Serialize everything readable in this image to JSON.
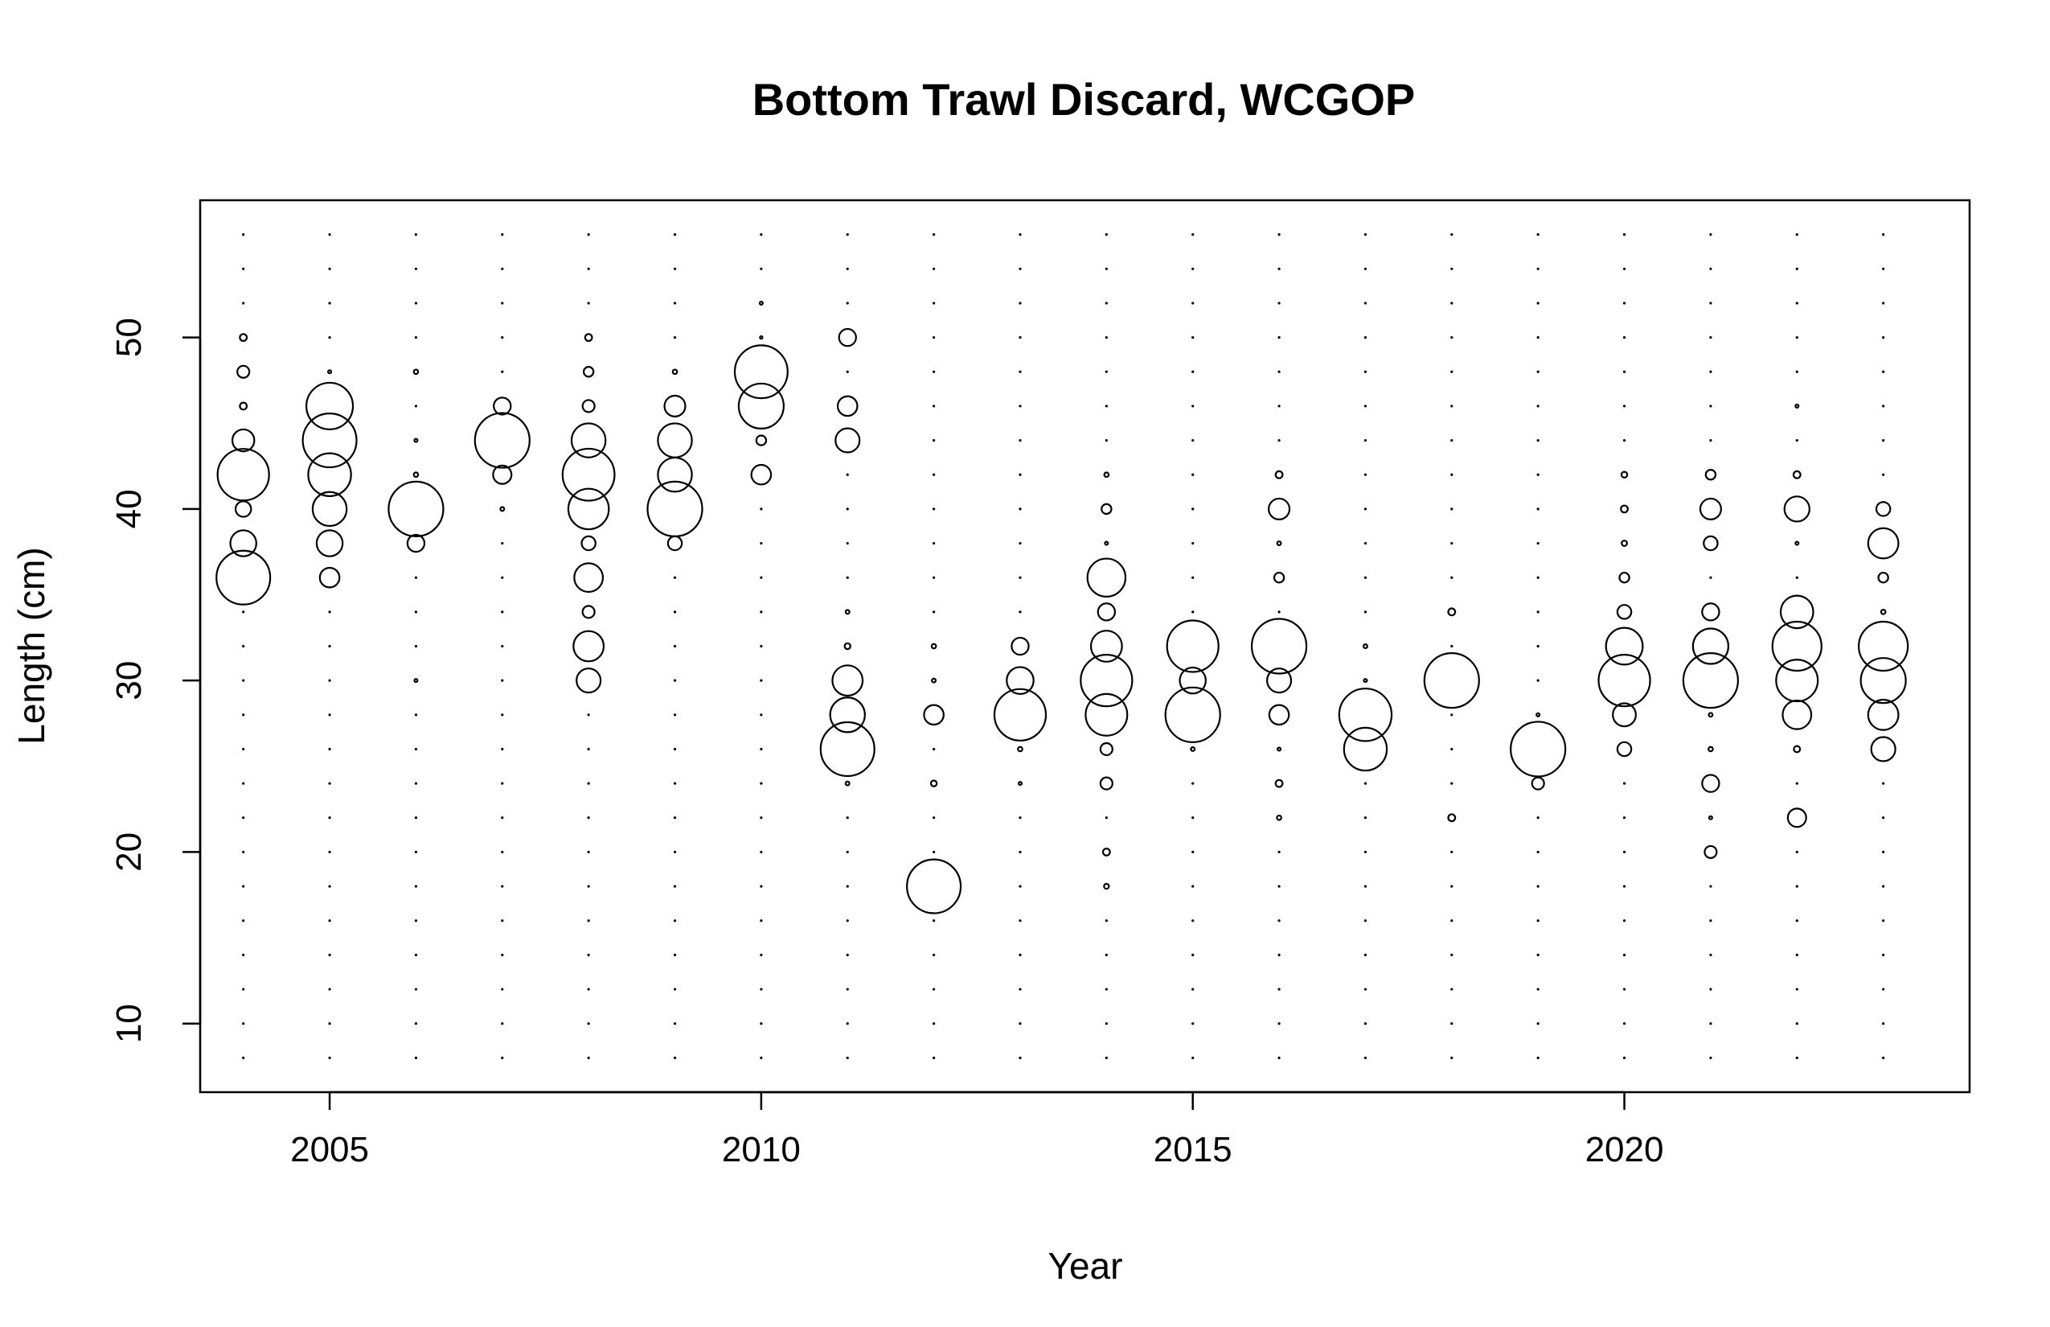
{
  "chart_data": {
    "type": "scatter",
    "subtype": "bubble",
    "title": "Bottom Trawl Discard, WCGOP",
    "xlabel": "Year",
    "ylabel": "Length (cm)",
    "xlim": [
      2003.5,
      2024.0
    ],
    "ylim": [
      6.0,
      58.0
    ],
    "x_ticks": [
      2005,
      2010,
      2015,
      2020
    ],
    "y_ticks": [
      10,
      20,
      30,
      40,
      50
    ],
    "x_tick_labels": [
      "2005",
      "2010",
      "2015",
      "2020"
    ],
    "y_tick_labels": [
      "10",
      "20",
      "30",
      "40",
      "50"
    ],
    "grid": false,
    "years": [
      2004,
      2005,
      2006,
      2007,
      2008,
      2009,
      2010,
      2011,
      2012,
      2013,
      2014,
      2015,
      2016,
      2017,
      2018,
      2019,
      2020,
      2021,
      2022,
      2023
    ],
    "length_bins": [
      8,
      10,
      12,
      14,
      16,
      18,
      20,
      22,
      24,
      26,
      28,
      30,
      32,
      34,
      36,
      38,
      40,
      42,
      44,
      46,
      48,
      50,
      52,
      54,
      56
    ],
    "size_meaning": "bubble radius proportional to the square root of the proportion at length within each year; empty bins are drawn as dots",
    "points": [
      [
        2004,
        50,
        0.01
      ],
      [
        2004,
        48,
        0.03
      ],
      [
        2004,
        46,
        0.01
      ],
      [
        2004,
        44,
        0.1
      ],
      [
        2004,
        42,
        0.55
      ],
      [
        2004,
        40,
        0.05
      ],
      [
        2004,
        38,
        0.14
      ],
      [
        2004,
        36,
        0.6
      ],
      [
        2005,
        48,
        0.002
      ],
      [
        2005,
        46,
        0.45
      ],
      [
        2005,
        44,
        0.6
      ],
      [
        2005,
        42,
        0.38
      ],
      [
        2005,
        40,
        0.24
      ],
      [
        2005,
        38,
        0.14
      ],
      [
        2005,
        36,
        0.08
      ],
      [
        2006,
        48,
        0.004
      ],
      [
        2006,
        44,
        0.002
      ],
      [
        2006,
        42,
        0.004
      ],
      [
        2006,
        40,
        0.62
      ],
      [
        2006,
        38,
        0.06
      ],
      [
        2006,
        30,
        0.002
      ],
      [
        2007,
        46,
        0.06
      ],
      [
        2007,
        44,
        0.62
      ],
      [
        2007,
        42,
        0.07
      ],
      [
        2007,
        40,
        0.003
      ],
      [
        2008,
        50,
        0.01
      ],
      [
        2008,
        48,
        0.02
      ],
      [
        2008,
        46,
        0.03
      ],
      [
        2008,
        44,
        0.24
      ],
      [
        2008,
        42,
        0.56
      ],
      [
        2008,
        40,
        0.34
      ],
      [
        2008,
        38,
        0.04
      ],
      [
        2008,
        36,
        0.17
      ],
      [
        2008,
        34,
        0.03
      ],
      [
        2008,
        32,
        0.19
      ],
      [
        2008,
        30,
        0.12
      ],
      [
        2009,
        48,
        0.004
      ],
      [
        2009,
        46,
        0.09
      ],
      [
        2009,
        44,
        0.24
      ],
      [
        2009,
        42,
        0.24
      ],
      [
        2009,
        40,
        0.62
      ],
      [
        2009,
        38,
        0.04
      ],
      [
        2010,
        52,
        0.002
      ],
      [
        2010,
        50,
        0.001
      ],
      [
        2010,
        48,
        0.58
      ],
      [
        2010,
        46,
        0.42
      ],
      [
        2010,
        44,
        0.02
      ],
      [
        2010,
        42,
        0.08
      ],
      [
        2011,
        50,
        0.06
      ],
      [
        2011,
        46,
        0.08
      ],
      [
        2011,
        44,
        0.12
      ],
      [
        2011,
        34,
        0.003
      ],
      [
        2011,
        32,
        0.007
      ],
      [
        2011,
        30,
        0.19
      ],
      [
        2011,
        28,
        0.25
      ],
      [
        2011,
        26,
        0.6
      ],
      [
        2011,
        24,
        0.003
      ],
      [
        2012,
        32,
        0.004
      ],
      [
        2012,
        30,
        0.003
      ],
      [
        2012,
        28,
        0.08
      ],
      [
        2012,
        24,
        0.007
      ],
      [
        2012,
        18,
        0.6
      ],
      [
        2013,
        32,
        0.06
      ],
      [
        2013,
        30,
        0.15
      ],
      [
        2013,
        28,
        0.55
      ],
      [
        2013,
        26,
        0.004
      ],
      [
        2013,
        24,
        0.002
      ],
      [
        2014,
        42,
        0.004
      ],
      [
        2014,
        40,
        0.02
      ],
      [
        2014,
        38,
        0.002
      ],
      [
        2014,
        36,
        0.3
      ],
      [
        2014,
        34,
        0.06
      ],
      [
        2014,
        32,
        0.2
      ],
      [
        2014,
        30,
        0.55
      ],
      [
        2014,
        28,
        0.36
      ],
      [
        2014,
        26,
        0.03
      ],
      [
        2014,
        24,
        0.03
      ],
      [
        2014,
        20,
        0.01
      ],
      [
        2014,
        18,
        0.005
      ],
      [
        2015,
        32,
        0.55
      ],
      [
        2015,
        30,
        0.14
      ],
      [
        2015,
        28,
        0.62
      ],
      [
        2015,
        26,
        0.003
      ],
      [
        2016,
        42,
        0.01
      ],
      [
        2016,
        40,
        0.09
      ],
      [
        2016,
        38,
        0.003
      ],
      [
        2016,
        36,
        0.02
      ],
      [
        2016,
        32,
        0.62
      ],
      [
        2016,
        30,
        0.12
      ],
      [
        2016,
        28,
        0.08
      ],
      [
        2016,
        26,
        0.002
      ],
      [
        2016,
        24,
        0.01
      ],
      [
        2016,
        22,
        0.004
      ],
      [
        2017,
        32,
        0.003
      ],
      [
        2017,
        30,
        0.002
      ],
      [
        2017,
        28,
        0.57
      ],
      [
        2017,
        26,
        0.38
      ],
      [
        2018,
        34,
        0.01
      ],
      [
        2018,
        30,
        0.62
      ],
      [
        2018,
        22,
        0.01
      ],
      [
        2019,
        28,
        0.002
      ],
      [
        2019,
        26,
        0.62
      ],
      [
        2019,
        24,
        0.03
      ],
      [
        2020,
        42,
        0.007
      ],
      [
        2020,
        40,
        0.01
      ],
      [
        2020,
        38,
        0.006
      ],
      [
        2020,
        36,
        0.02
      ],
      [
        2020,
        34,
        0.04
      ],
      [
        2020,
        32,
        0.28
      ],
      [
        2020,
        30,
        0.55
      ],
      [
        2020,
        28,
        0.11
      ],
      [
        2020,
        26,
        0.04
      ],
      [
        2021,
        42,
        0.02
      ],
      [
        2021,
        40,
        0.09
      ],
      [
        2021,
        38,
        0.04
      ],
      [
        2021,
        34,
        0.06
      ],
      [
        2021,
        32,
        0.26
      ],
      [
        2021,
        30,
        0.62
      ],
      [
        2021,
        28,
        0.003
      ],
      [
        2021,
        26,
        0.004
      ],
      [
        2021,
        24,
        0.06
      ],
      [
        2021,
        22,
        0.002
      ],
      [
        2021,
        20,
        0.03
      ],
      [
        2022,
        46,
        0.002
      ],
      [
        2022,
        42,
        0.01
      ],
      [
        2022,
        40,
        0.13
      ],
      [
        2022,
        38,
        0.002
      ],
      [
        2022,
        34,
        0.22
      ],
      [
        2022,
        32,
        0.5
      ],
      [
        2022,
        30,
        0.36
      ],
      [
        2022,
        28,
        0.17
      ],
      [
        2022,
        26,
        0.008
      ],
      [
        2022,
        22,
        0.07
      ],
      [
        2023,
        40,
        0.04
      ],
      [
        2023,
        38,
        0.19
      ],
      [
        2023,
        36,
        0.02
      ],
      [
        2023,
        34,
        0.004
      ],
      [
        2023,
        32,
        0.5
      ],
      [
        2023,
        30,
        0.42
      ],
      [
        2023,
        28,
        0.19
      ],
      [
        2023,
        26,
        0.12
      ]
    ]
  }
}
